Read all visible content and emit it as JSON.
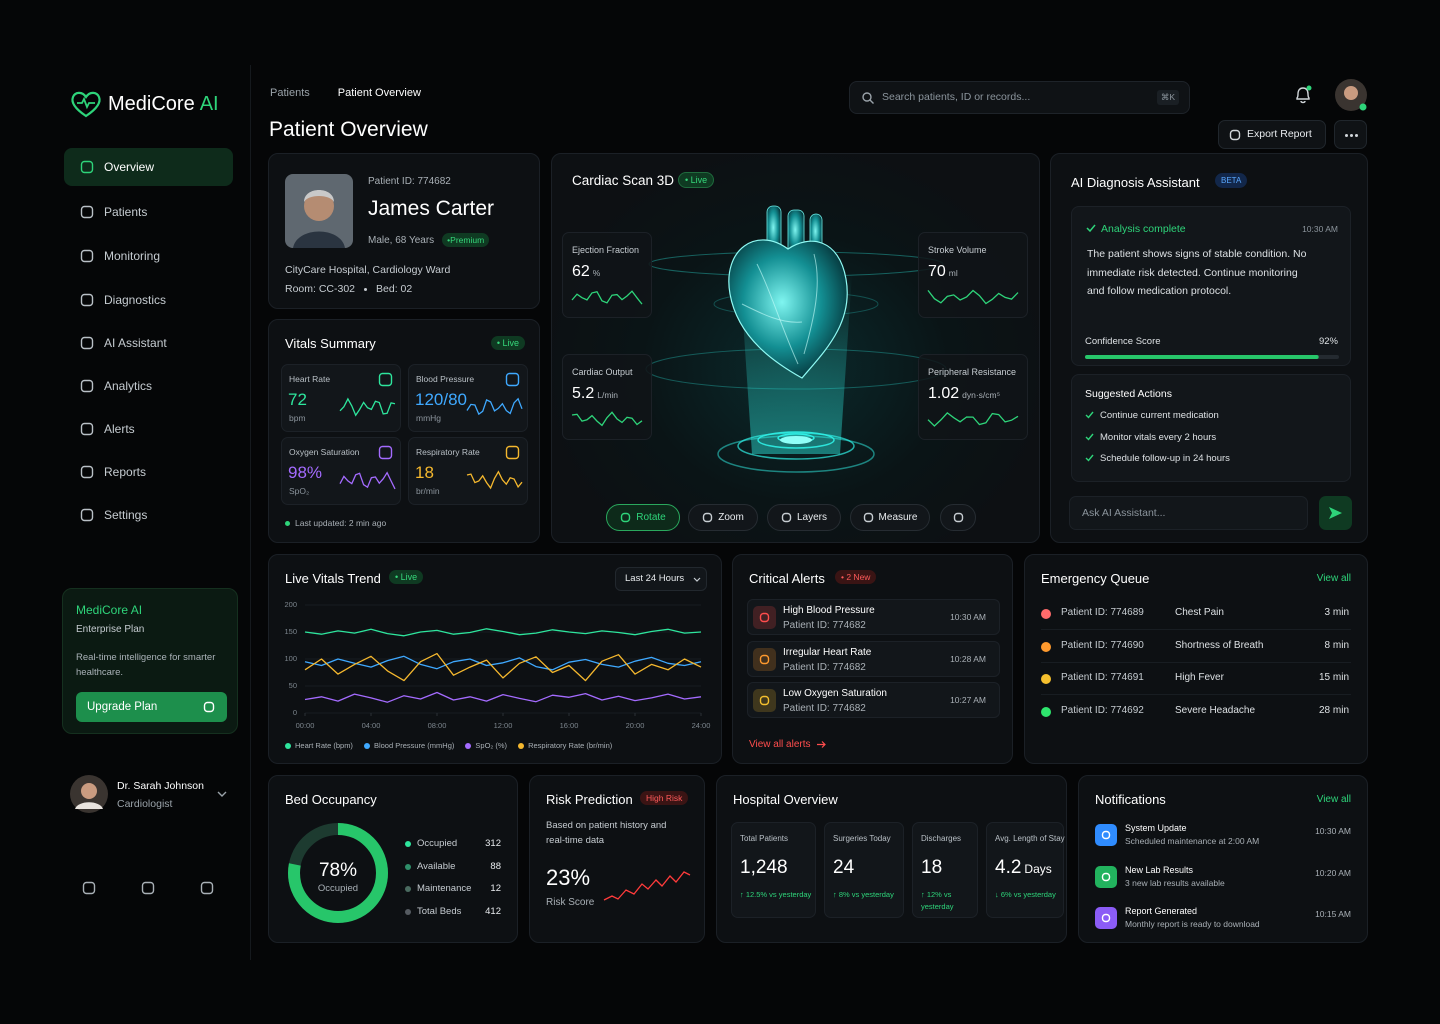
{
  "brand": {
    "name": "MediCore",
    "accent": "AI"
  },
  "nav": [
    "Overview",
    "Patients",
    "Monitoring",
    "Diagnostics",
    "AI Assistant",
    "Analytics",
    "Alerts",
    "Reports",
    "Settings"
  ],
  "promo": {
    "title": "MediCore AI",
    "plan": "Enterprise Plan",
    "text": "Real-time intelligence for smarter healthcare.",
    "button": "Upgrade Plan"
  },
  "user": {
    "name": "Dr. Sarah Johnson",
    "role": "Cardiologist"
  },
  "breadcrumb": [
    "Patients",
    "Patient Overview"
  ],
  "page_title": "Patient Overview",
  "search": {
    "placeholder": "Search patients, ID or records...",
    "shortcut": "⌘K"
  },
  "export": "Export Report",
  "patient": {
    "id": "Patient ID: 774682",
    "name": "James Carter",
    "info": "Male, 68 Years",
    "badge": "•Premium",
    "hospital": "CityCare Hospital, Cardiology Ward",
    "room": "Room: CC-302",
    "bed": "Bed: 02"
  },
  "vitals": {
    "title": "Vitals Summary",
    "live": "• Live",
    "updated": "Last updated: 2 min ago",
    "items": [
      {
        "label": "Heart Rate",
        "value": "72",
        "unit": "bpm",
        "color": "#2ee59d"
      },
      {
        "label": "Blood Pressure",
        "value": "120/80",
        "unit": "mmHg",
        "color": "#3fa9ff"
      },
      {
        "label": "Oxygen Saturation",
        "value": "98%",
        "unit": "SpO₂",
        "color": "#a46bff"
      },
      {
        "label": "Respiratory Rate",
        "value": "18",
        "unit": "br/min",
        "color": "#f5b82e"
      }
    ]
  },
  "scan": {
    "title": "Cardiac Scan 3D",
    "live": "• Live",
    "metrics": [
      {
        "label": "Ejection Fraction",
        "value": "62",
        "unit": "%"
      },
      {
        "label": "Cardiac Output",
        "value": "5.2",
        "unit": "L/min"
      },
      {
        "label": "Stroke Volume",
        "value": "70",
        "unit": "ml"
      },
      {
        "label": "Peripheral Resistance",
        "value": "1.02",
        "unit": "dyn·s/cm⁵"
      }
    ],
    "controls": [
      "Rotate",
      "Zoom",
      "Layers",
      "Measure"
    ]
  },
  "ai": {
    "title": "AI Diagnosis Assistant",
    "badge": "BETA",
    "status": "Analysis complete",
    "time": "10:30 AM",
    "message": "The patient shows signs of stable condition. No immediate risk detected. Continue monitoring and follow medication protocol.",
    "confidence_label": "Confidence Score",
    "confidence": {
      "value": 92,
      "label": "92%"
    },
    "actions_title": "Suggested Actions",
    "actions": [
      "Continue current medication",
      "Monitor vitals every 2 hours",
      "Schedule follow-up in 24 hours"
    ],
    "input": "Ask AI Assistant..."
  },
  "trend": {
    "type": "line",
    "title": "Live Vitals Trend",
    "live": "• Live",
    "range": "Last 24 Hours",
    "x": [
      0,
      1,
      2,
      3,
      4,
      5,
      6,
      7,
      8,
      9,
      10,
      11,
      12,
      13,
      14,
      15,
      16,
      17,
      18,
      19,
      20,
      21,
      22,
      23,
      24
    ],
    "xlim": [
      0,
      24
    ],
    "xticks": [
      {
        "value": 0,
        "label": "00:00"
      },
      {
        "value": 4,
        "label": "04:00"
      },
      {
        "value": 8,
        "label": "08:00"
      },
      {
        "value": 12,
        "label": "12:00"
      },
      {
        "value": 16,
        "label": "16:00"
      },
      {
        "value": 20,
        "label": "20:00"
      },
      {
        "value": 24,
        "label": "24:00"
      }
    ],
    "ylim": [
      0,
      200
    ],
    "yticks": [
      0,
      50,
      100,
      150,
      200
    ],
    "series": [
      {
        "name": "Heart Rate (bpm)",
        "color": "#2ee59d",
        "values": [
          150,
          146,
          152,
          148,
          155,
          147,
          143,
          150,
          153,
          146,
          149,
          156,
          151,
          145,
          148,
          154,
          150,
          147,
          152,
          149,
          145,
          151,
          155,
          148,
          150
        ]
      },
      {
        "name": "Blood Pressure (mmHg)",
        "color": "#3fa9ff",
        "values": [
          95,
          88,
          100,
          92,
          85,
          97,
          105,
          90,
          82,
          95,
          100,
          88,
          93,
          102,
          86,
          80,
          94,
          99,
          90,
          85,
          96,
          103,
          92,
          88,
          95
        ]
      },
      {
        "name": "SpO₂ (%)",
        "color": "#a46bff",
        "values": [
          25,
          30,
          22,
          35,
          28,
          20,
          32,
          26,
          38,
          24,
          30,
          22,
          34,
          27,
          21,
          33,
          29,
          36,
          24,
          31,
          23,
          28,
          35,
          26,
          30
        ]
      },
      {
        "name": "Respiratory Rate (br/min)",
        "color": "#f5b82e",
        "values": [
          80,
          100,
          72,
          90,
          105,
          78,
          60,
          95,
          110,
          70,
          85,
          98,
          65,
          92,
          104,
          75,
          88,
          60,
          96,
          108,
          72,
          90,
          80,
          100,
          85
        ]
      }
    ]
  },
  "alerts": {
    "title": "Critical Alerts",
    "badge": "• 2 New",
    "link": "View all alerts",
    "items": [
      {
        "title": "High Blood Pressure",
        "patient": "Patient ID: 774682",
        "time": "10:30 AM",
        "color": "#ff4d4d"
      },
      {
        "title": "Irregular Heart Rate",
        "patient": "Patient ID: 774682",
        "time": "10:28 AM",
        "color": "#ff9a2e"
      },
      {
        "title": "Low Oxygen Saturation",
        "patient": "Patient ID: 774682",
        "time": "10:27 AM",
        "color": "#f5c02e"
      }
    ]
  },
  "queue": {
    "title": "Emergency Queue",
    "link": "View all",
    "items": [
      {
        "id": "Patient ID: 774689",
        "reason": "Chest Pain",
        "wait": "3 min",
        "color": "#ff6b6b"
      },
      {
        "id": "Patient ID: 774690",
        "reason": "Shortness of Breath",
        "wait": "8 min",
        "color": "#ff9a2e"
      },
      {
        "id": "Patient ID: 774691",
        "reason": "High Fever",
        "wait": "15 min",
        "color": "#f5c02e"
      },
      {
        "id": "Patient ID: 774692",
        "reason": "Severe Headache",
        "wait": "28 min",
        "color": "#2ee56d"
      }
    ]
  },
  "beds": {
    "title": "Bed Occupancy",
    "occupancy": {
      "value": 78,
      "label": "78%"
    },
    "center_label": "Occupied",
    "legend": [
      {
        "label": "Occupied",
        "value": "312",
        "color": "#2ee59d"
      },
      {
        "label": "Available",
        "value": "88",
        "color": "#2f8f6a"
      },
      {
        "label": "Maintenance",
        "value": "12",
        "color": "#4a6b60"
      },
      {
        "label": "Total Beds",
        "value": "412",
        "color": "#555b61"
      }
    ]
  },
  "risk": {
    "title": "Risk Prediction",
    "badge": "High Risk",
    "text": "Based on patient history and real-time data",
    "score": "23%",
    "score_label": "Risk Score"
  },
  "hospital": {
    "title": "Hospital Overview",
    "stats": [
      {
        "label": "Total Patients",
        "value": "1,248",
        "unit": "",
        "change": "↑ 12.5% vs yesterday"
      },
      {
        "label": "Surgeries Today",
        "value": "24",
        "unit": "",
        "change": "↑ 8% vs yesterday"
      },
      {
        "label": "Discharges",
        "value": "18",
        "unit": "",
        "change": "↑ 12% vs yesterday"
      },
      {
        "label": "Avg. Length of Stay",
        "value": "4.2",
        "unit": "Days",
        "change": "↓ 6% vs yesterday"
      }
    ]
  },
  "notifications": {
    "title": "Notifications",
    "link": "View all",
    "items": [
      {
        "title": "System Update",
        "text": "Scheduled maintenance at 2:00 AM",
        "time": "10:30 AM",
        "color": "#2f8cff"
      },
      {
        "title": "New Lab Results",
        "text": "3 new lab results available",
        "time": "10:20 AM",
        "color": "#22b35e"
      },
      {
        "title": "Report Generated",
        "text": "Monthly report is ready to download",
        "time": "10:15 AM",
        "color": "#8b5cf6"
      }
    ]
  }
}
